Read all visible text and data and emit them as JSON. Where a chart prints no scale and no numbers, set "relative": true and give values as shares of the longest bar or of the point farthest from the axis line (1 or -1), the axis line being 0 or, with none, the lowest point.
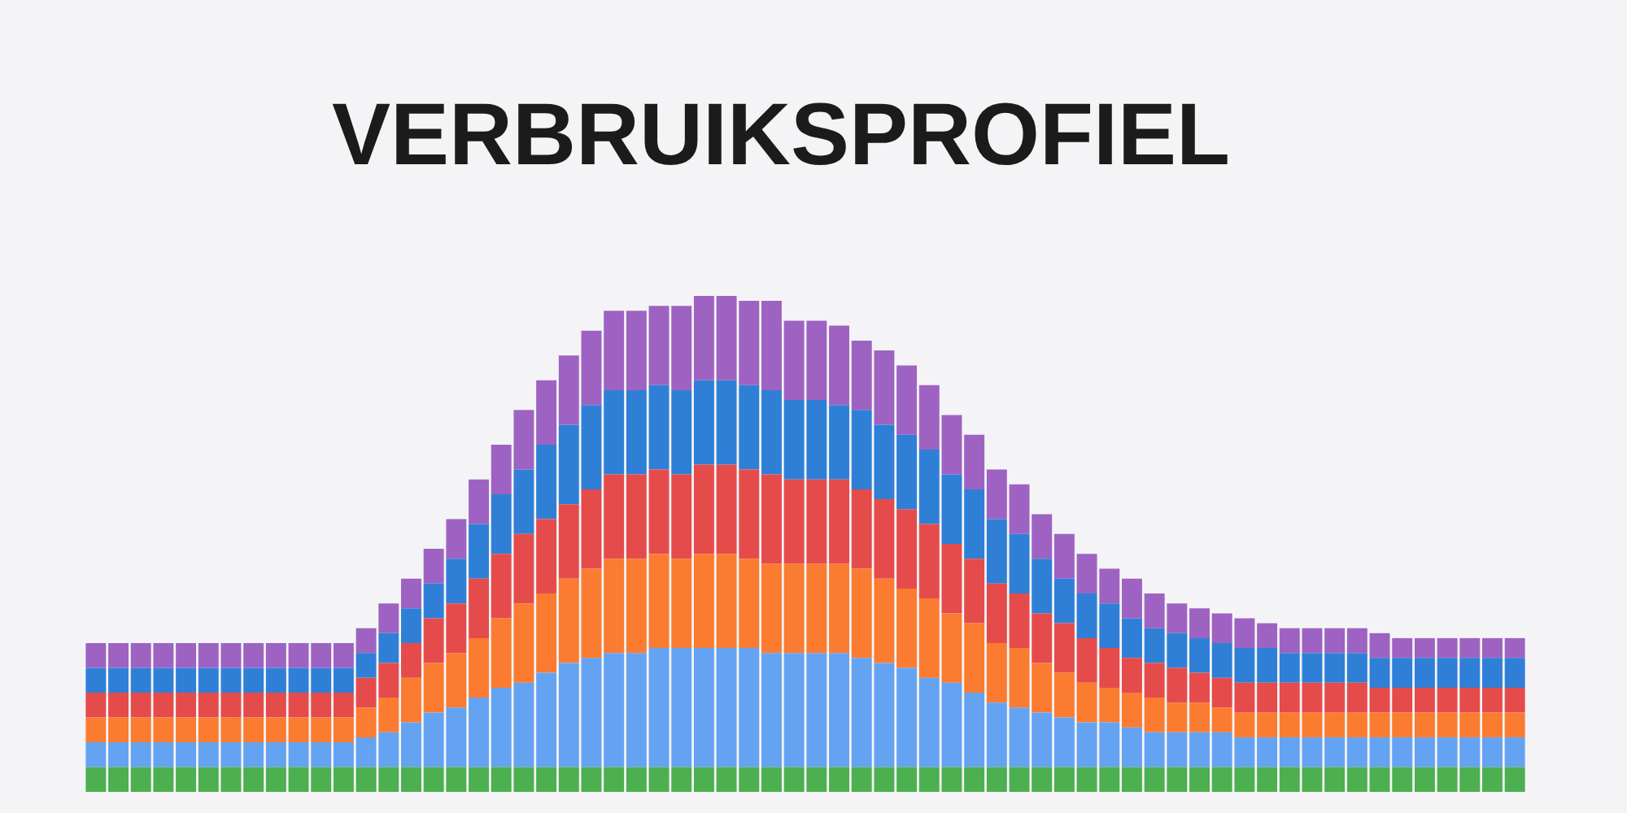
{
  "chart_data": {
    "type": "bar",
    "title": "VERBRUIKSPROFIEL",
    "stacked": true,
    "relative": true,
    "categories": [
      null,
      null,
      null,
      null,
      null,
      null,
      null,
      null,
      null,
      null,
      null,
      null,
      null,
      null,
      null,
      null,
      null,
      null,
      null,
      null,
      null,
      null,
      null,
      null,
      null,
      null,
      null,
      null,
      null,
      null,
      null,
      null,
      null,
      null,
      null,
      null,
      null,
      null,
      null,
      null,
      null,
      null,
      null,
      null,
      null,
      null,
      null,
      null,
      null,
      null,
      null,
      null,
      null,
      null,
      null,
      null,
      null,
      null,
      null,
      null,
      null,
      null,
      null,
      null
    ],
    "series": [
      {
        "color": "#4caf50",
        "values": [
          0.05,
          0.05,
          0.05,
          0.05,
          0.05,
          0.05,
          0.05,
          0.05,
          0.05,
          0.05,
          0.05,
          0.05,
          0.05,
          0.05,
          0.05,
          0.05,
          0.05,
          0.05,
          0.05,
          0.05,
          0.05,
          0.05,
          0.05,
          0.05,
          0.05,
          0.05,
          0.05,
          0.05,
          0.05,
          0.05,
          0.05,
          0.05,
          0.05,
          0.05,
          0.05,
          0.05,
          0.05,
          0.05,
          0.05,
          0.05,
          0.05,
          0.05,
          0.05,
          0.05,
          0.05,
          0.05,
          0.05,
          0.05,
          0.05,
          0.05,
          0.05,
          0.05,
          0.05,
          0.05,
          0.05,
          0.05,
          0.05,
          0.05,
          0.05,
          0.05,
          0.05,
          0.05,
          0.05,
          0.05
        ]
      },
      {
        "color": "#64a3f2",
        "values": [
          0.05,
          0.05,
          0.05,
          0.05,
          0.05,
          0.05,
          0.05,
          0.05,
          0.05,
          0.05,
          0.05,
          0.05,
          0.06,
          0.07,
          0.09,
          0.11,
          0.12,
          0.14,
          0.16,
          0.17,
          0.19,
          0.21,
          0.22,
          0.23,
          0.23,
          0.24,
          0.24,
          0.24,
          0.24,
          0.24,
          0.23,
          0.23,
          0.23,
          0.23,
          0.22,
          0.21,
          0.2,
          0.18,
          0.17,
          0.15,
          0.13,
          0.12,
          0.11,
          0.1,
          0.09,
          0.09,
          0.08,
          0.07,
          0.07,
          0.07,
          0.07,
          0.06,
          0.06,
          0.06,
          0.06,
          0.06,
          0.06,
          0.06,
          0.06,
          0.06,
          0.06,
          0.06,
          0.06,
          0.06
        ]
      },
      {
        "color": "#fb7b30",
        "values": [
          0.05,
          0.05,
          0.05,
          0.05,
          0.05,
          0.05,
          0.05,
          0.05,
          0.05,
          0.05,
          0.05,
          0.05,
          0.06,
          0.07,
          0.09,
          0.1,
          0.11,
          0.12,
          0.14,
          0.16,
          0.16,
          0.17,
          0.18,
          0.19,
          0.19,
          0.19,
          0.18,
          0.19,
          0.19,
          0.18,
          0.18,
          0.18,
          0.18,
          0.18,
          0.18,
          0.17,
          0.16,
          0.16,
          0.14,
          0.14,
          0.12,
          0.12,
          0.1,
          0.09,
          0.08,
          0.07,
          0.07,
          0.07,
          0.06,
          0.06,
          0.05,
          0.05,
          0.05,
          0.05,
          0.05,
          0.05,
          0.05,
          0.05,
          0.05,
          0.05,
          0.05,
          0.05,
          0.05,
          0.05
        ]
      },
      {
        "color": "#e64b4b",
        "values": [
          0.05,
          0.05,
          0.05,
          0.05,
          0.05,
          0.05,
          0.05,
          0.05,
          0.05,
          0.05,
          0.05,
          0.05,
          0.06,
          0.07,
          0.07,
          0.09,
          0.1,
          0.12,
          0.13,
          0.14,
          0.15,
          0.15,
          0.16,
          0.17,
          0.17,
          0.17,
          0.17,
          0.18,
          0.18,
          0.18,
          0.18,
          0.17,
          0.17,
          0.17,
          0.16,
          0.16,
          0.16,
          0.15,
          0.14,
          0.13,
          0.12,
          0.11,
          0.1,
          0.1,
          0.09,
          0.08,
          0.07,
          0.07,
          0.07,
          0.06,
          0.06,
          0.06,
          0.06,
          0.06,
          0.06,
          0.06,
          0.06,
          0.05,
          0.05,
          0.05,
          0.05,
          0.05,
          0.05,
          0.05
        ]
      },
      {
        "color": "#2f7fd7",
        "values": [
          0.05,
          0.05,
          0.05,
          0.05,
          0.05,
          0.05,
          0.05,
          0.05,
          0.05,
          0.05,
          0.05,
          0.05,
          0.05,
          0.06,
          0.07,
          0.07,
          0.09,
          0.11,
          0.12,
          0.13,
          0.15,
          0.16,
          0.17,
          0.17,
          0.17,
          0.17,
          0.17,
          0.17,
          0.17,
          0.17,
          0.17,
          0.16,
          0.16,
          0.15,
          0.16,
          0.15,
          0.15,
          0.15,
          0.14,
          0.14,
          0.13,
          0.12,
          0.11,
          0.09,
          0.09,
          0.09,
          0.08,
          0.07,
          0.07,
          0.07,
          0.07,
          0.07,
          0.07,
          0.06,
          0.06,
          0.06,
          0.06,
          0.06,
          0.06,
          0.06,
          0.06,
          0.06,
          0.06,
          0.06
        ]
      },
      {
        "color": "#9e63c2",
        "values": [
          0.05,
          0.05,
          0.05,
          0.05,
          0.05,
          0.05,
          0.05,
          0.05,
          0.05,
          0.05,
          0.05,
          0.05,
          0.05,
          0.06,
          0.06,
          0.07,
          0.08,
          0.09,
          0.1,
          0.12,
          0.13,
          0.14,
          0.15,
          0.16,
          0.16,
          0.16,
          0.17,
          0.17,
          0.17,
          0.17,
          0.18,
          0.16,
          0.16,
          0.16,
          0.14,
          0.15,
          0.14,
          0.13,
          0.12,
          0.11,
          0.1,
          0.1,
          0.09,
          0.09,
          0.08,
          0.07,
          0.08,
          0.07,
          0.06,
          0.06,
          0.06,
          0.06,
          0.05,
          0.05,
          0.05,
          0.05,
          0.05,
          0.05,
          0.04,
          0.04,
          0.04,
          0.04,
          0.04,
          0.04
        ]
      }
    ]
  }
}
